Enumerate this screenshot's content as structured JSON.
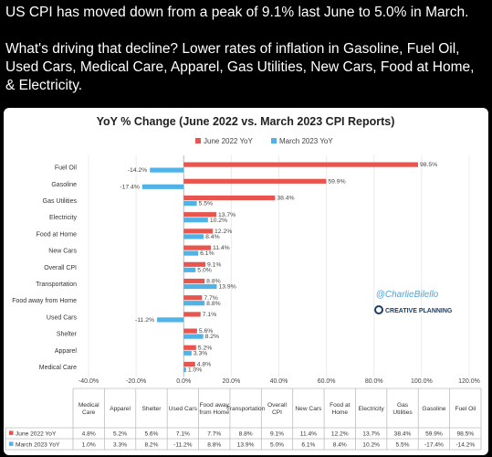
{
  "tweet": {
    "line1": "US CPI has moved down from a peak of 9.1% last June to 5.0% in March.",
    "line2": "What's driving that decline? Lower rates of inflation in Gasoline, Fuel Oil, Used Cars, Medical Care, Apparel, Gas Utilities, New Cars, Food at Home, & Electricity."
  },
  "watermark": {
    "handle": "@CharlieBilello",
    "brand": "CREATIVE PLANNING"
  },
  "colors": {
    "june": "#e8554e",
    "march": "#4fb3e8"
  },
  "chart_data": {
    "type": "bar",
    "orientation": "horizontal",
    "title": "YoY % Change (June 2022 vs. March 2023 CPI Reports)",
    "categories": [
      "Fuel Oil",
      "Gasoline",
      "Gas Utilities",
      "Electricity",
      "Food at Home",
      "New Cars",
      "Overall CPI",
      "Transportation",
      "Food away from Home",
      "Used Cars",
      "Shelter",
      "Apparel",
      "Medical Care"
    ],
    "series": [
      {
        "name": "June 2022 YoY",
        "values": [
          98.5,
          59.9,
          38.4,
          13.7,
          12.2,
          11.4,
          9.1,
          8.8,
          7.7,
          7.1,
          5.6,
          5.2,
          4.8
        ]
      },
      {
        "name": "March 2023 YoY",
        "values": [
          -14.2,
          -17.4,
          5.5,
          10.2,
          8.4,
          6.1,
          5.0,
          13.9,
          8.8,
          -11.2,
          8.2,
          3.3,
          1.0
        ]
      }
    ],
    "xlim": [
      -40,
      120
    ],
    "xticks": [
      -40,
      -20,
      0,
      20,
      40,
      60,
      80,
      100,
      120
    ],
    "xtick_labels": [
      "-40.0%",
      "-20.0%",
      "0.0%",
      "20.0%",
      "40.0%",
      "60.0%",
      "80.0%",
      "100.0%",
      "120.0%"
    ],
    "legend_position": "top",
    "table": {
      "columns": [
        "Medical Care",
        "Apparel",
        "Shelter",
        "Used Cars",
        "Food away from Home",
        "Transportation",
        "Overall CPI",
        "New Cars",
        "Food at Home",
        "Electricity",
        "Gas Utilities",
        "Gasoline",
        "Fuel Oil"
      ],
      "rows": [
        {
          "label": "June 2022 YoY",
          "values": [
            "4.8%",
            "5.2%",
            "5.6%",
            "7.1%",
            "7.7%",
            "8.8%",
            "9.1%",
            "11.4%",
            "12.2%",
            "13.7%",
            "38.4%",
            "59.9%",
            "98.5%"
          ]
        },
        {
          "label": "March 2023 YoY",
          "values": [
            "1.0%",
            "3.3%",
            "8.2%",
            "-11.2%",
            "8.8%",
            "13.9%",
            "5.0%",
            "6.1%",
            "8.4%",
            "10.2%",
            "5.5%",
            "-17.4%",
            "-14.2%"
          ]
        }
      ]
    }
  }
}
